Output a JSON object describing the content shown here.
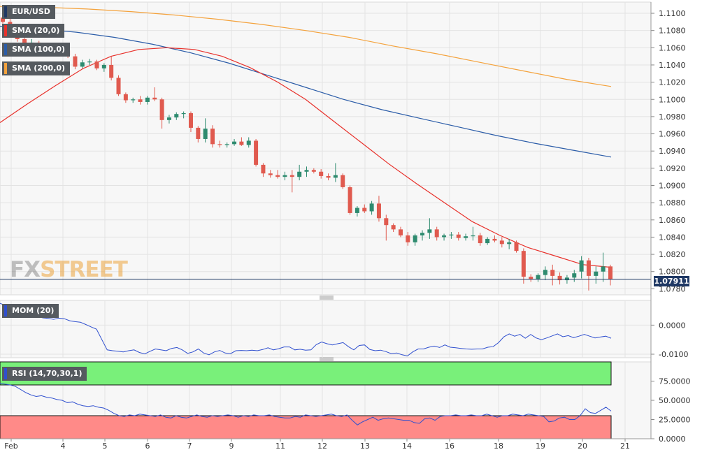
{
  "symbol": "EUR/USD",
  "legends": {
    "sma20": "SMA (20,0)",
    "sma100": "SMA (100,0)",
    "sma200": "SMA (200,0)",
    "mom": "MOM (20)",
    "rsi": "RSI (14,70,30,1)"
  },
  "last_price": "1.07911",
  "watermark": {
    "part1": "FX",
    "part2": "STREET"
  },
  "colors": {
    "up": "#2e8b6f",
    "down": "#e05a4f",
    "sma20": "#e8312b",
    "sma100": "#2b5ca8",
    "sma200": "#f4a23c",
    "mom": "#2f4fcf",
    "rsi": "#2f4fcf",
    "rsi_overbought_zone": "#79f07a",
    "rsi_oversold_zone": "#ff8a88",
    "price_line": "#1f3864"
  },
  "chart_data": [
    {
      "type": "candlestick",
      "panel": "price",
      "title": "EUR/USD",
      "yaxis_ticks": [
        "1.1100",
        "1.1080",
        "1.1060",
        "1.1040",
        "1.1020",
        "1.1000",
        "1.0980",
        "1.0960",
        "1.0940",
        "1.0920",
        "1.0900",
        "1.0880",
        "1.0860",
        "1.0840",
        "1.0820",
        "1.0800",
        "1.0780"
      ],
      "ylim": [
        1.0773,
        1.1113
      ],
      "xaxis_ticks": [
        "Feb",
        "4",
        "5",
        "6",
        "7",
        "9",
        "11",
        "12",
        "13",
        "14",
        "16",
        "18",
        "19",
        "20",
        "21"
      ],
      "candles": [
        [
          1.1095,
          1.1101,
          1.1088,
          1.109
        ],
        [
          1.109,
          1.1096,
          1.1078,
          1.1082
        ],
        [
          1.1082,
          1.1086,
          1.1067,
          1.107
        ],
        [
          1.107,
          1.1074,
          1.1058,
          1.1062
        ],
        [
          1.1062,
          1.107,
          1.1058,
          1.1066
        ],
        [
          1.1066,
          1.1068,
          1.1055,
          1.1058
        ],
        [
          1.1058,
          1.1064,
          1.1054,
          1.1061
        ],
        [
          1.1061,
          1.1063,
          1.105,
          1.1054
        ],
        [
          1.1054,
          1.106,
          1.105,
          1.1057
        ],
        [
          1.1057,
          1.106,
          1.1048,
          1.1051
        ],
        [
          1.105,
          1.1053,
          1.1035,
          1.1038
        ],
        [
          1.1038,
          1.1046,
          1.1036,
          1.1043
        ],
        [
          1.1043,
          1.1047,
          1.104,
          1.1044
        ],
        [
          1.1044,
          1.1046,
          1.1034,
          1.1036
        ],
        [
          1.1036,
          1.1042,
          1.1032,
          1.104
        ],
        [
          1.104,
          1.105,
          1.1022,
          1.1025
        ],
        [
          1.1025,
          1.1028,
          1.1004,
          1.1006
        ],
        [
          1.1006,
          1.1008,
          1.0996,
          1.0999
        ],
        [
          1.0999,
          1.1002,
          1.0996,
          1.1
        ],
        [
          1.1,
          1.1004,
          1.0994,
          1.0997
        ],
        [
          1.0997,
          1.1004,
          1.0994,
          1.1002
        ],
        [
          1.1002,
          1.1014,
          1.0998,
          1.1
        ],
        [
          1.1,
          1.1002,
          1.0966,
          1.0976
        ],
        [
          1.0976,
          1.0982,
          1.0972,
          1.0979
        ],
        [
          1.0979,
          1.0985,
          1.0976,
          1.0983
        ],
        [
          1.0983,
          1.0986,
          1.0978,
          1.0984
        ],
        [
          1.0984,
          1.0986,
          1.0962,
          1.0967
        ],
        [
          1.0967,
          1.0969,
          1.095,
          1.0954
        ],
        [
          1.0954,
          1.0978,
          1.095,
          1.0966
        ],
        [
          1.0966,
          1.097,
          1.0944,
          1.0948
        ],
        [
          1.0948,
          1.0952,
          1.0944,
          1.0947
        ],
        [
          1.0947,
          1.095,
          1.0944,
          1.0948
        ],
        [
          1.0948,
          1.0954,
          1.0946,
          1.0951
        ],
        [
          1.0951,
          1.0956,
          1.0946,
          1.0947
        ],
        [
          1.0947,
          1.0956,
          1.0944,
          1.0952
        ],
        [
          1.0952,
          1.0954,
          1.0922,
          1.0924
        ],
        [
          1.0924,
          1.0926,
          1.091,
          1.0914
        ],
        [
          1.0914,
          1.0918,
          1.0909,
          1.0912
        ],
        [
          1.0912,
          1.0918,
          1.0908,
          1.091
        ],
        [
          1.091,
          1.0916,
          1.0906,
          1.0912
        ],
        [
          1.0912,
          1.0918,
          1.0892,
          1.091
        ],
        [
          1.091,
          1.0924,
          1.0906,
          1.0916
        ],
        [
          1.0916,
          1.0922,
          1.091,
          1.0918
        ],
        [
          1.0918,
          1.092,
          1.0914,
          1.0916
        ],
        [
          1.0916,
          1.0919,
          1.0908,
          1.0911
        ],
        [
          1.0911,
          1.0914,
          1.0906,
          1.0909
        ],
        [
          1.0909,
          1.0926,
          1.0904,
          1.0912
        ],
        [
          1.0912,
          1.0914,
          1.0896,
          1.0898
        ],
        [
          1.0898,
          1.09,
          1.0866,
          1.0868
        ],
        [
          1.0868,
          1.0876,
          1.0864,
          1.0874
        ],
        [
          1.0874,
          1.0878,
          1.0868,
          1.087
        ],
        [
          1.087,
          1.0882,
          1.0866,
          1.0879
        ],
        [
          1.0879,
          1.0888,
          1.0858,
          1.0862
        ],
        [
          1.0862,
          1.0866,
          1.0836,
          1.0854
        ],
        [
          1.0854,
          1.0856,
          1.0846,
          1.0849
        ],
        [
          1.0849,
          1.0852,
          1.084,
          1.0842
        ],
        [
          1.0842,
          1.0846,
          1.083,
          1.0834
        ],
        [
          1.0834,
          1.0844,
          1.083,
          1.0842
        ],
        [
          1.0842,
          1.0848,
          1.0836,
          1.0845
        ],
        [
          1.0845,
          1.0862,
          1.0838,
          1.0849
        ],
        [
          1.0849,
          1.0852,
          1.0836,
          1.084
        ],
        [
          1.084,
          1.0844,
          1.0836,
          1.0842
        ],
        [
          1.0842,
          1.0846,
          1.0838,
          1.0843
        ],
        [
          1.0843,
          1.0846,
          1.0836,
          1.0839
        ],
        [
          1.0839,
          1.0844,
          1.0836,
          1.0841
        ],
        [
          1.0841,
          1.0852,
          1.0836,
          1.0842
        ],
        [
          1.0842,
          1.0845,
          1.083,
          1.0833
        ],
        [
          1.0833,
          1.084,
          1.0831,
          1.0838
        ],
        [
          1.0838,
          1.0842,
          1.0834,
          1.0836
        ],
        [
          1.0836,
          1.084,
          1.0828,
          1.0832
        ],
        [
          1.0832,
          1.0838,
          1.0826,
          1.0834
        ],
        [
          1.0834,
          1.0836,
          1.0822,
          1.0824
        ],
        [
          1.0824,
          1.0827,
          1.0786,
          1.0794
        ],
        [
          1.0794,
          1.0797,
          1.0788,
          1.0791
        ],
        [
          1.0791,
          1.0798,
          1.0788,
          1.0796
        ],
        [
          1.0796,
          1.0806,
          1.079,
          1.0802
        ],
        [
          1.0802,
          1.0808,
          1.0784,
          1.0795
        ],
        [
          1.0795,
          1.0799,
          1.0785,
          1.079
        ],
        [
          1.079,
          1.0796,
          1.0786,
          1.0793
        ],
        [
          1.0793,
          1.0802,
          1.0788,
          1.0798
        ],
        [
          1.08,
          1.0818,
          1.0792,
          1.0813
        ],
        [
          1.0813,
          1.0816,
          1.0778,
          1.0795
        ],
        [
          1.0795,
          1.0806,
          1.0786,
          1.08
        ],
        [
          1.08,
          1.0822,
          1.0788,
          1.0806
        ],
        [
          1.0806,
          1.0808,
          1.0784,
          1.0791
        ]
      ],
      "sma20": [
        1.0973,
        1.0995,
        1.1016,
        1.1036,
        1.105,
        1.1058,
        1.106,
        1.1058,
        1.105,
        1.1037,
        1.102,
        1.1,
        1.0975,
        1.095,
        1.0925,
        1.0902,
        1.088,
        1.0858,
        1.0842,
        1.0828,
        1.0818,
        1.0808,
        1.0805
      ],
      "sma100": [
        1.1085,
        1.1082,
        1.1078,
        1.1072,
        1.1064,
        1.1054,
        1.1042,
        1.1028,
        1.1014,
        1.1,
        1.0988,
        1.0978,
        1.0968,
        1.0958,
        1.0949,
        1.0941,
        1.0933
      ],
      "sma200": [
        1.1108,
        1.1107,
        1.1105,
        1.1102,
        1.1098,
        1.1093,
        1.1087,
        1.108,
        1.1072,
        1.1062,
        1.1053,
        1.1043,
        1.1033,
        1.1023,
        1.1015
      ]
    },
    {
      "type": "line",
      "panel": "momentum",
      "title": "MOM (20)",
      "yaxis_ticks": [
        "0.0000",
        "-0.0100"
      ],
      "ylim": [
        -0.0112,
        0.0085
      ],
      "values": [
        0.0075,
        0.0068,
        0.006,
        0.0048,
        0.0043,
        0.004,
        0.0035,
        0.003,
        0.0025,
        0.0023,
        0.002,
        0.0024,
        0.0022,
        0.0015,
        0.0012,
        0.001,
        0.0002,
        -0.0006,
        -0.0014,
        -0.005,
        -0.0085,
        -0.0088,
        -0.009,
        -0.0092,
        -0.0088,
        -0.0085,
        -0.0094,
        -0.0099,
        -0.009,
        -0.0082,
        -0.0085,
        -0.0088,
        -0.008,
        -0.0077,
        -0.0085,
        -0.0097,
        -0.0092,
        -0.0082,
        -0.0096,
        -0.0102,
        -0.0092,
        -0.0087,
        -0.0096,
        -0.0098,
        -0.0088,
        -0.0087,
        -0.0088,
        -0.0086,
        -0.0088,
        -0.0084,
        -0.0078,
        -0.0085,
        -0.0081,
        -0.0075,
        -0.0075,
        -0.0085,
        -0.0083,
        -0.0086,
        -0.0085,
        -0.0067,
        -0.0058,
        -0.0064,
        -0.0068,
        -0.0064,
        -0.006,
        -0.0074,
        -0.0085,
        -0.007,
        -0.0068,
        -0.0084,
        -0.0088,
        -0.0086,
        -0.0091,
        -0.0098,
        -0.0096,
        -0.0102,
        -0.0106,
        -0.0092,
        -0.0082,
        -0.0082,
        -0.0076,
        -0.0072,
        -0.0077,
        -0.0068,
        -0.0076,
        -0.0078,
        -0.008,
        -0.0082,
        -0.0083,
        -0.0082,
        -0.0082,
        -0.0076,
        -0.0074,
        -0.006,
        -0.004,
        -0.003,
        -0.0038,
        -0.0032,
        -0.0045,
        -0.0032,
        -0.0044,
        -0.005,
        -0.0044,
        -0.0037,
        -0.003,
        -0.004,
        -0.0036,
        -0.0043,
        -0.0038,
        -0.0032,
        -0.0038,
        -0.0044,
        -0.0041,
        -0.0038,
        -0.0045
      ]
    },
    {
      "type": "line",
      "panel": "rsi",
      "title": "RSI (14,70,30,1)",
      "yaxis_ticks": [
        "75.0000",
        "50.0000",
        "25.0000",
        "0.0000"
      ],
      "ylim": [
        0,
        100
      ],
      "zones": {
        "overbought": [
          70,
          100
        ],
        "oversold": [
          0,
          30
        ]
      },
      "values": [
        72,
        71,
        70,
        68,
        64,
        60,
        57,
        55,
        56,
        54,
        53,
        51,
        50,
        47,
        48,
        45,
        43,
        42,
        43,
        41,
        40,
        37,
        33,
        30,
        29,
        31,
        30,
        32,
        31,
        30,
        29,
        31,
        28,
        27,
        30,
        28,
        27,
        29,
        31,
        29,
        28,
        30,
        29,
        30,
        31,
        30,
        28,
        30,
        29,
        31,
        30,
        30,
        31,
        29,
        28,
        27,
        27,
        29,
        28,
        31,
        30,
        29,
        30,
        31,
        32,
        30,
        29,
        31,
        24,
        18,
        22,
        25,
        28,
        24,
        26,
        27,
        26,
        25,
        24,
        24,
        21,
        20,
        26,
        27,
        24,
        29,
        30,
        30,
        31,
        30,
        30,
        31,
        30,
        30,
        32,
        30,
        28,
        30,
        30,
        32,
        31,
        30,
        32,
        31,
        30,
        29,
        22,
        23,
        27,
        28,
        25,
        25,
        30,
        39,
        34,
        33,
        37,
        41,
        36
      ]
    }
  ]
}
